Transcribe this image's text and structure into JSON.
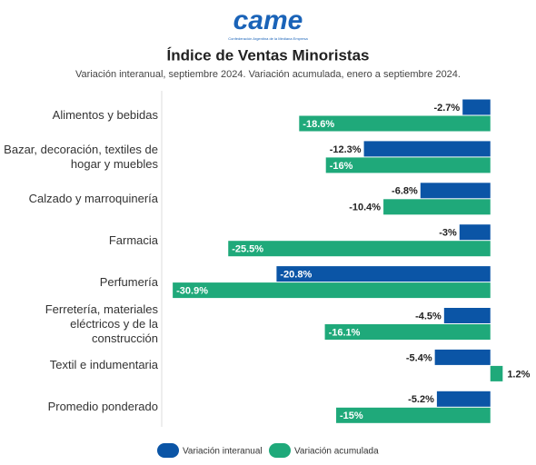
{
  "logo": {
    "text": "came",
    "tagline": "Confederación Argentina de la Mediana Empresa"
  },
  "chart_data": {
    "type": "hbar",
    "title": "Índice de Ventas Minoristas",
    "subtitle": "Variación interanual, septiembre 2024. Variación acumulada, enero a septiembre 2024.",
    "categories": [
      "Alimentos y bebidas",
      "Bazar, decoración, textiles de hogar y muebles",
      "Calzado y marroquinería",
      "Farmacia",
      "Perfumería",
      "Ferretería, materiales eléctricos y de la construcción",
      "Textil e indumentaria",
      "Promedio ponderado"
    ],
    "series": [
      {
        "name": "Variación interanual",
        "color": "#0b55a6",
        "values": [
          -2.7,
          -12.3,
          -6.8,
          -3,
          -20.8,
          -4.5,
          -5.4,
          -5.2
        ],
        "value_labels": [
          "-2.7%",
          "-12.3%",
          "-6.8%",
          "-3%",
          "-20.8%",
          "-4.5%",
          "-5.4%",
          "-5.2%"
        ]
      },
      {
        "name": "Variación acumulada",
        "color": "#1fa97a",
        "values": [
          -18.6,
          -16,
          -10.4,
          -25.5,
          -30.9,
          -16.1,
          1.2,
          -15
        ],
        "value_labels": [
          "-18.6%",
          "-16%",
          "-10.4%",
          "-25.5%",
          "-30.9%",
          "-16.1%",
          "1.2%",
          "-15%"
        ]
      }
    ],
    "xlim": [
      -31,
      4
    ]
  }
}
